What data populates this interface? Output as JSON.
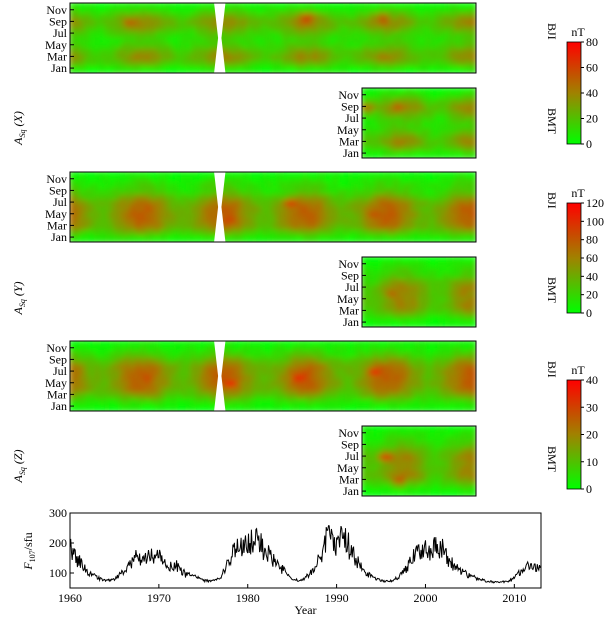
{
  "figure": {
    "panel_labels": [
      "BJI",
      "BMT"
    ],
    "month_ticks": [
      "Jan",
      "Mar",
      "May",
      "Jul",
      "Sep",
      "Nov"
    ],
    "colorbar_unit": "nT"
  },
  "chart_data": [
    {
      "type": "heatmap",
      "name": "Asq(X)",
      "ylabel": "A_Sq (X)",
      "colorbar": {
        "min": 0,
        "max": 80,
        "ticks": [
          0,
          20,
          40,
          60,
          80
        ],
        "colors": [
          "#00ff00",
          "#ff0000"
        ],
        "unit": "nT"
      },
      "stations": [
        {
          "name": "BJI",
          "year_range": [
            1960,
            2013
          ],
          "data_gap": [
            1979.2,
            1979.9
          ],
          "peak_months": [
            3,
            9
          ],
          "hotspots": [
            {
              "year": 1991,
              "month": 9.5,
              "value": 70
            },
            {
              "year": 2001,
              "month": 9.5,
              "value": 60
            },
            {
              "year": 1968,
              "month": 9,
              "value": 55
            }
          ]
        },
        {
          "name": "BMT",
          "year_range": [
            1995,
            2013
          ],
          "peak_months": [
            3,
            9
          ],
          "hotspots": [
            {
              "year": 2001,
              "month": 9,
              "value": 55
            },
            {
              "year": 1996,
              "month": 9,
              "value": 50
            }
          ]
        }
      ]
    },
    {
      "type": "heatmap",
      "name": "Asq(Y)",
      "ylabel": "A_Sq (Y)",
      "colorbar": {
        "min": 0,
        "max": 120,
        "ticks": [
          0,
          20,
          40,
          60,
          80,
          100,
          120
        ],
        "colors": [
          "#00ff00",
          "#ff0000"
        ],
        "unit": "nT"
      },
      "stations": [
        {
          "name": "BJI",
          "year_range": [
            1960,
            2013
          ],
          "data_gap": [
            1979.2,
            1979.9
          ],
          "peak_months": [
            3,
            5,
            7
          ],
          "hotspots": [
            {
              "year": 1989,
              "month": 7,
              "value": 100
            },
            {
              "year": 1981,
              "month": 4,
              "value": 95
            },
            {
              "year": 2000,
              "month": 5,
              "value": 90
            },
            {
              "year": 1970,
              "month": 6,
              "value": 80
            }
          ]
        },
        {
          "name": "BMT",
          "year_range": [
            1995,
            2013
          ],
          "peak_months": [
            4,
            7
          ],
          "hotspots": [
            {
              "year": 2000,
              "month": 6,
              "value": 75
            },
            {
              "year": 2011,
              "month": 6,
              "value": 65
            }
          ]
        }
      ]
    },
    {
      "type": "heatmap",
      "name": "Asq(Z)",
      "ylabel": "A_Sq (Z)",
      "colorbar": {
        "min": 0,
        "max": 40,
        "ticks": [
          0,
          10,
          20,
          30,
          40
        ],
        "colors": [
          "#00ff00",
          "#ff0000"
        ],
        "unit": "nT"
      },
      "stations": [
        {
          "name": "BJI",
          "year_range": [
            1960,
            2013
          ],
          "data_gap": [
            1979.2,
            1979.9
          ],
          "peak_months": [
            4,
            6,
            8
          ],
          "hotspots": [
            {
              "year": 1981,
              "month": 5,
              "value": 38
            },
            {
              "year": 1990,
              "month": 6,
              "value": 38
            },
            {
              "year": 2000,
              "month": 7,
              "value": 35
            },
            {
              "year": 1970,
              "month": 6,
              "value": 30
            }
          ]
        },
        {
          "name": "BMT",
          "year_range": [
            1995,
            2013
          ],
          "peak_months": [
            4,
            7
          ],
          "hotspots": [
            {
              "year": 1999,
              "month": 7,
              "value": 36
            },
            {
              "year": 2001,
              "month": 3,
              "value": 30
            }
          ]
        }
      ]
    },
    {
      "type": "line",
      "name": "F107",
      "ylabel": "F107/sfu",
      "xlabel": "Year",
      "x_ticks": [
        1960,
        1970,
        1980,
        1990,
        2000,
        2010
      ],
      "y_ticks": [
        100,
        200,
        300
      ],
      "xlim": [
        1960,
        2013
      ],
      "ylim": [
        50,
        300
      ],
      "anchors": {
        "x": [
          1960,
          1961,
          1962,
          1963,
          1964,
          1965,
          1966,
          1967,
          1968,
          1969,
          1970,
          1971,
          1972,
          1973,
          1974,
          1975,
          1976,
          1977,
          1978,
          1979,
          1980,
          1981,
          1982,
          1983,
          1984,
          1985,
          1986,
          1987,
          1988,
          1989,
          1990,
          1991,
          1992,
          1993,
          1994,
          1995,
          1996,
          1997,
          1998,
          1999,
          2000,
          2001,
          2002,
          2003,
          2004,
          2005,
          2006,
          2007,
          2008,
          2009,
          2010,
          2011,
          2012,
          2013
        ],
        "y": [
          180,
          140,
          105,
          85,
          75,
          78,
          105,
          145,
          155,
          150,
          160,
          120,
          125,
          95,
          90,
          75,
          72,
          85,
          145,
          195,
          210,
          205,
          175,
          135,
          110,
          78,
          75,
          95,
          150,
          215,
          205,
          210,
          155,
          110,
          85,
          75,
          72,
          85,
          120,
          165,
          180,
          185,
          175,
          130,
          105,
          90,
          80,
          72,
          70,
          70,
          82,
          115,
          125,
          120
        ]
      }
    }
  ]
}
